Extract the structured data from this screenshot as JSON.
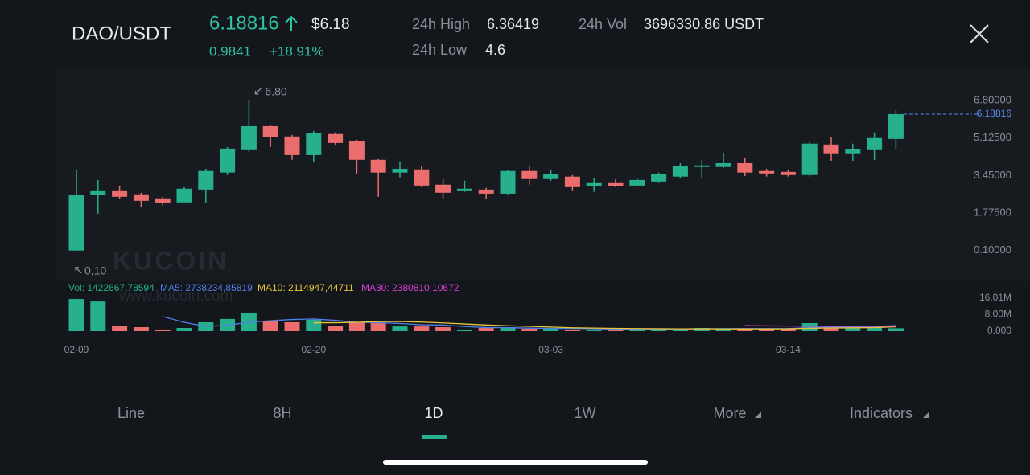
{
  "header": {
    "pair": "DAO/USDT",
    "price": "6.18816",
    "usd_price": "$6.18",
    "change": "0.9841",
    "change_pct": "+18.91%",
    "high_label": "24h High",
    "high": "6.36419",
    "low_label": "24h Low",
    "low": "4.6",
    "vol_label": "24h Vol",
    "vol": "3696330.86 USDT"
  },
  "watermark": {
    "logo": "KUCOIN",
    "url": "www.kucoin.com"
  },
  "tabs": [
    "Line",
    "8H",
    "1D",
    "1W",
    "More",
    "Indicators"
  ],
  "active_tab": 2,
  "chart_data": [
    {
      "type": "candlestick",
      "categories": [
        "02-09",
        null,
        null,
        null,
        null,
        null,
        null,
        null,
        null,
        null,
        null,
        "02-20",
        null,
        null,
        null,
        null,
        null,
        null,
        null,
        null,
        null,
        null,
        "03-03",
        null,
        null,
        null,
        null,
        null,
        null,
        null,
        null,
        null,
        null,
        "03-14",
        null,
        null,
        null,
        null,
        null
      ],
      "open": [
        0.1,
        2.57,
        2.75,
        2.61,
        2.43,
        2.25,
        2.82,
        3.58,
        4.58,
        5.65,
        5.19,
        4.36,
        5.3,
        4.97,
        4.15,
        3.58,
        3.72,
        3.04,
        2.75,
        2.82,
        2.64,
        3.65,
        3.29,
        3.4,
        2.97,
        3.11,
        3.0,
        3.18,
        3.4,
        3.83,
        3.83,
        4.0,
        3.65,
        3.61,
        3.47,
        4.83,
        4.44,
        4.58,
        5.08
      ],
      "high": [
        3.72,
        3.25,
        3.0,
        2.68,
        2.5,
        2.93,
        3.75,
        4.72,
        6.8,
        5.72,
        5.26,
        5.44,
        5.37,
        5.04,
        4.18,
        4.08,
        3.86,
        3.29,
        3.22,
        2.9,
        3.68,
        3.86,
        3.72,
        3.47,
        3.32,
        3.29,
        3.32,
        3.58,
        4.0,
        4.15,
        4.47,
        4.22,
        3.75,
        3.68,
        4.94,
        5.15,
        4.87,
        5.37,
        6.36419
      ],
      "low": [
        0.1,
        1.75,
        2.39,
        2.03,
        2.1,
        2.21,
        2.21,
        3.47,
        4.51,
        4.72,
        4.15,
        4.04,
        4.83,
        3.54,
        2.5,
        3.36,
        2.93,
        2.43,
        2.72,
        2.39,
        2.61,
        3.04,
        3.22,
        2.75,
        2.72,
        2.93,
        2.97,
        3.11,
        3.32,
        3.36,
        3.79,
        3.43,
        3.4,
        3.4,
        3.4,
        4.11,
        4.11,
        4.15,
        4.6
      ],
      "close": [
        2.57,
        2.75,
        2.5,
        2.32,
        2.21,
        2.86,
        3.65,
        4.65,
        5.65,
        5.15,
        4.36,
        5.33,
        4.9,
        4.15,
        3.58,
        3.75,
        3.0,
        2.68,
        2.86,
        2.64,
        3.65,
        3.29,
        3.5,
        2.93,
        3.11,
        2.97,
        3.25,
        3.5,
        3.86,
        3.9,
        4.0,
        3.58,
        3.54,
        3.47,
        4.87,
        4.44,
        4.62,
        5.12,
        6.18816
      ],
      "up_color": "#26b08c",
      "down_color": "#ec6d6d",
      "ylim": [
        -1.2,
        7.8
      ],
      "yticks": [
        {
          "value": 6.8,
          "label": "6.80000"
        },
        {
          "value": 5.125,
          "label": "5.12500"
        },
        {
          "value": 3.45,
          "label": "3.45000"
        },
        {
          "value": 1.775,
          "label": "1.77500"
        },
        {
          "value": 0.1,
          "label": "0.10000"
        }
      ],
      "current_price": 6.18816,
      "current_color": "#5b8def",
      "max_annotation": {
        "value": 6.8,
        "label": "6,80"
      },
      "min_annotation": {
        "value": 0.1,
        "label": "0,10"
      }
    },
    {
      "type": "bar",
      "values": [
        15600000,
        14400000,
        2700000,
        1950000,
        800000,
        1560000,
        4300000,
        5900000,
        9000000,
        4700000,
        4300000,
        5500000,
        2700000,
        4300000,
        3900000,
        2300000,
        2300000,
        1950000,
        800000,
        1560000,
        1950000,
        1200000,
        1200000,
        800000,
        800000,
        800000,
        800000,
        1200000,
        1200000,
        1560000,
        1200000,
        1200000,
        1200000,
        1200000,
        3900000,
        2300000,
        1560000,
        2300000,
        1422667.78594
      ],
      "volume_legend": "Vol: 1422667,78594",
      "volume_legend_color": "#26b08c",
      "lines": [
        {
          "name": "MA5",
          "legend_label": "MA5: 2738234,85819",
          "color": "#4f7fe8",
          "values": [
            null,
            null,
            null,
            null,
            7090000,
            4280000,
            2260000,
            2900000,
            4310000,
            5090000,
            5640000,
            5880000,
            5240000,
            4300000,
            4140000,
            3740000,
            3100000,
            2950000,
            2250000,
            1780000,
            1710000,
            1490000,
            1340000,
            1340000,
            1190000,
            960000,
            920000,
            960000,
            1040000,
            1200000,
            1250000,
            1270000,
            1270000,
            1270000,
            1740000,
            1960000,
            2030000,
            2250000,
            2738234.85819
          ]
        },
        {
          "name": "MA10",
          "legend_label": "MA10: 2114947,44711",
          "color": "#e8c53a",
          "values": [
            null,
            null,
            null,
            null,
            null,
            null,
            null,
            null,
            null,
            null,
            null,
            4070000,
            4070000,
            4300000,
            4610000,
            4690000,
            4380000,
            4000000,
            3490000,
            3000000,
            2630000,
            2330000,
            2000000,
            1670000,
            1510000,
            1370000,
            1270000,
            1190000,
            1120000,
            1140000,
            1080000,
            1100000,
            1100000,
            1140000,
            1420000,
            1570000,
            1640000,
            1750000,
            2114947.44711
          ]
        },
        {
          "name": "MA30",
          "legend_label": "MA30: 2380810,10672",
          "color": "#d63fd6",
          "values": [
            null,
            null,
            null,
            null,
            null,
            null,
            null,
            null,
            null,
            null,
            null,
            null,
            null,
            null,
            null,
            null,
            null,
            null,
            null,
            null,
            null,
            null,
            null,
            null,
            null,
            null,
            null,
            null,
            null,
            null,
            null,
            2700000,
            2600000,
            2500000,
            2450000,
            2420000,
            2400000,
            2390000,
            2380810.10672
          ]
        }
      ],
      "ylim": [
        0,
        16010000
      ],
      "yticks": [
        {
          "value": 16010000,
          "label": "16.01M"
        },
        {
          "value": 8000000,
          "label": "8.00M"
        },
        {
          "value": 0,
          "label": "0.000"
        }
      ]
    }
  ]
}
